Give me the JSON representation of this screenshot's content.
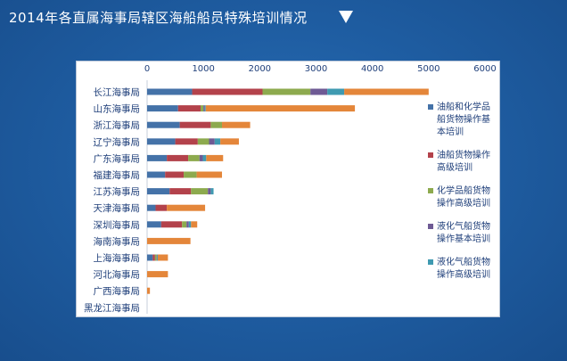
{
  "title": "2014年各直属海事局辖区海船船员特殊培训情况",
  "colors": [
    "#4472a8",
    "#b3424b",
    "#8daa4e",
    "#6e5a94",
    "#3f9ab1",
    "#e4863a"
  ],
  "chart_data": {
    "type": "bar",
    "orientation": "horizontal",
    "stacked": true,
    "xlim": [
      0,
      6000
    ],
    "x_ticks": [
      "0",
      "1000",
      "2000",
      "3000",
      "4000",
      "5000",
      "6000"
    ],
    "categories": [
      "长江海事局",
      "山东海事局",
      "浙江海事局",
      "辽宁海事局",
      "广东海事局",
      "福建海事局",
      "江苏海事局",
      "天津海事局",
      "深圳海事局",
      "海南海事局",
      "上海海事局",
      "河北海事局",
      "广西海事局",
      "黑龙江海事局"
    ],
    "series": [
      {
        "name": "油船和化学品船货物操作基本培训",
        "values": [
          800,
          550,
          580,
          500,
          350,
          320,
          400,
          150,
          250,
          0,
          100,
          0,
          0,
          0
        ]
      },
      {
        "name": "油船货物操作高级培训",
        "values": [
          1250,
          400,
          550,
          400,
          380,
          330,
          380,
          200,
          370,
          0,
          40,
          0,
          0,
          0
        ]
      },
      {
        "name": "化学品船货物操作高级培训",
        "values": [
          850,
          50,
          200,
          200,
          200,
          230,
          300,
          0,
          80,
          0,
          30,
          0,
          0,
          0
        ]
      },
      {
        "name": "液化气船货物操作基本培训",
        "values": [
          300,
          20,
          0,
          100,
          60,
          0,
          50,
          0,
          40,
          0,
          10,
          0,
          0,
          0
        ]
      },
      {
        "name": "液化气船货物操作高级培训",
        "values": [
          300,
          20,
          0,
          100,
          60,
          0,
          50,
          0,
          40,
          0,
          10,
          0,
          0,
          0
        ]
      },
      {
        "values": [
          1500,
          2650,
          500,
          330,
          300,
          450,
          0,
          680,
          110,
          770,
          180,
          370,
          50,
          0
        ]
      }
    ],
    "legend": [
      "油船和化学品船货物操作基本培训",
      "油船货物操作高级培训",
      "化学品船货物操作高级培训",
      "液化气船货物操作基本培训",
      "液化气船货物操作高级培训"
    ],
    "legend_lines": [
      [
        "油船和化学品",
        "船货物操作基",
        "本培训"
      ],
      [
        "油船货物操作",
        "高级培训"
      ],
      [
        "化学品船货物",
        "操作高级培训"
      ],
      [
        "液化气船货物",
        "操作基本培训"
      ],
      [
        "液化气船货物",
        "操作高级培训"
      ]
    ],
    "legend_position": "right",
    "grid": false
  }
}
